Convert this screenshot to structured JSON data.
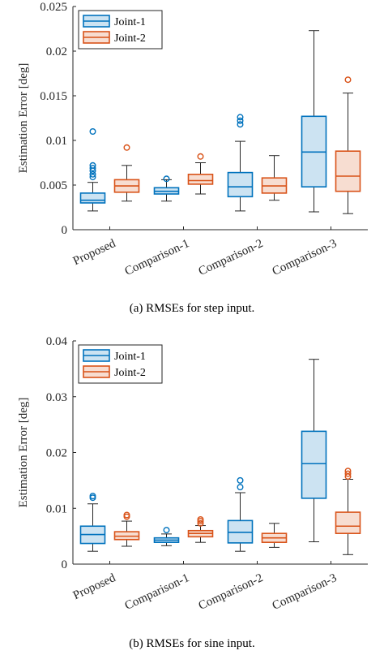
{
  "chart_data": [
    {
      "type": "boxplot",
      "caption": "(a) RMSEs for step input.",
      "ylabel": "Estimation Error [deg]",
      "ylim": [
        0,
        0.025
      ],
      "yticks": [
        0,
        0.005,
        0.01,
        0.015,
        0.02,
        0.025
      ],
      "ytick_labels": [
        "0",
        "0.005",
        "0.01",
        "0.015",
        "0.02",
        "0.025"
      ],
      "categories": [
        "Proposed",
        "Comparison-1",
        "Comparison-2",
        "Comparison-3"
      ],
      "legend": {
        "position": "top-left"
      },
      "series": [
        {
          "name": "Joint-1",
          "color": "#0072BD",
          "fill": "#CCE3F2",
          "boxes": [
            {
              "min": 0.0021,
              "q1": 0.003,
              "median": 0.0033,
              "q3": 0.0041,
              "max": 0.0053,
              "outliers": [
                0.0059,
                0.0062,
                0.0066,
                0.0069,
                0.0072,
                0.011
              ]
            },
            {
              "min": 0.0032,
              "q1": 0.004,
              "median": 0.0043,
              "q3": 0.0047,
              "max": 0.0056,
              "outliers": [
                0.0057
              ]
            },
            {
              "min": 0.0021,
              "q1": 0.0037,
              "median": 0.0048,
              "q3": 0.0064,
              "max": 0.0099,
              "outliers": [
                0.0118,
                0.0122,
                0.0126
              ]
            },
            {
              "min": 0.002,
              "q1": 0.0048,
              "median": 0.0087,
              "q3": 0.0127,
              "max": 0.0223,
              "outliers": []
            }
          ]
        },
        {
          "name": "Joint-2",
          "color": "#D95319",
          "fill": "#F7DDD1",
          "boxes": [
            {
              "min": 0.0032,
              "q1": 0.0042,
              "median": 0.0049,
              "q3": 0.0056,
              "max": 0.0072,
              "outliers": [
                0.0092
              ]
            },
            {
              "min": 0.004,
              "q1": 0.0051,
              "median": 0.0055,
              "q3": 0.0062,
              "max": 0.0075,
              "outliers": [
                0.0082
              ]
            },
            {
              "min": 0.0033,
              "q1": 0.0041,
              "median": 0.0049,
              "q3": 0.0058,
              "max": 0.0083,
              "outliers": []
            },
            {
              "min": 0.0018,
              "q1": 0.0043,
              "median": 0.006,
              "q3": 0.0088,
              "max": 0.0153,
              "outliers": [
                0.0168
              ]
            }
          ]
        }
      ]
    },
    {
      "type": "boxplot",
      "caption": "(b) RMSEs for sine input.",
      "ylabel": "Estimation Error [deg]",
      "ylim": [
        0,
        0.04
      ],
      "yticks": [
        0,
        0.01,
        0.02,
        0.03,
        0.04
      ],
      "ytick_labels": [
        "0",
        "0.01",
        "0.02",
        "0.03",
        "0.04"
      ],
      "categories": [
        "Proposed",
        "Comparison-1",
        "Comparison-2",
        "Comparison-3"
      ],
      "legend": {
        "position": "top-left"
      },
      "series": [
        {
          "name": "Joint-1",
          "color": "#0072BD",
          "fill": "#CCE3F2",
          "boxes": [
            {
              "min": 0.0023,
              "q1": 0.0037,
              "median": 0.0053,
              "q3": 0.0068,
              "max": 0.0108,
              "outliers": [
                0.0119,
                0.0122
              ]
            },
            {
              "min": 0.0033,
              "q1": 0.0039,
              "median": 0.0043,
              "q3": 0.0047,
              "max": 0.0054,
              "outliers": [
                0.0061
              ]
            },
            {
              "min": 0.0023,
              "q1": 0.0038,
              "median": 0.0057,
              "q3": 0.0078,
              "max": 0.0128,
              "outliers": [
                0.0138,
                0.015
              ]
            },
            {
              "min": 0.004,
              "q1": 0.0118,
              "median": 0.018,
              "q3": 0.0238,
              "max": 0.0367,
              "outliers": []
            }
          ]
        },
        {
          "name": "Joint-2",
          "color": "#D95319",
          "fill": "#F7DDD1",
          "boxes": [
            {
              "min": 0.0032,
              "q1": 0.0044,
              "median": 0.005,
              "q3": 0.0058,
              "max": 0.0077,
              "outliers": [
                0.0085,
                0.0088
              ]
            },
            {
              "min": 0.0039,
              "q1": 0.0049,
              "median": 0.0055,
              "q3": 0.006,
              "max": 0.0069,
              "outliers": [
                0.0073,
                0.0077,
                0.008
              ]
            },
            {
              "min": 0.003,
              "q1": 0.0039,
              "median": 0.0047,
              "q3": 0.0055,
              "max": 0.0073,
              "outliers": []
            },
            {
              "min": 0.0017,
              "q1": 0.0055,
              "median": 0.0068,
              "q3": 0.0093,
              "max": 0.0152,
              "outliers": [
                0.0157,
                0.0162,
                0.0167
              ]
            }
          ]
        }
      ]
    }
  ]
}
